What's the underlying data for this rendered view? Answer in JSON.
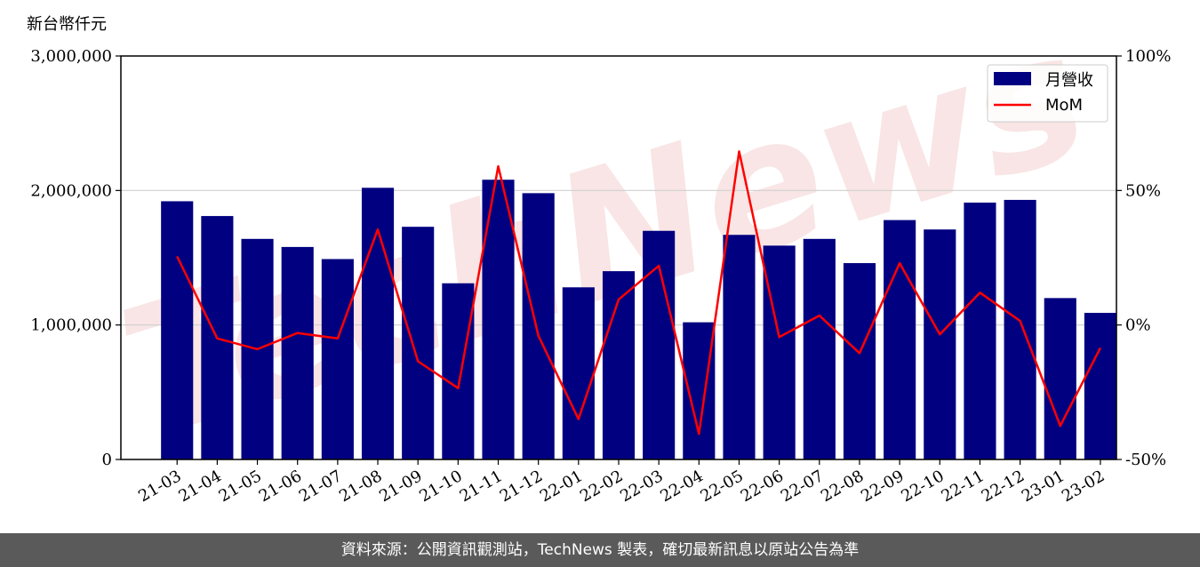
{
  "chart_data": {
    "type": "bar",
    "y_unit_label": "新台幣仟元",
    "categories": [
      "21-03",
      "21-04",
      "21-05",
      "21-06",
      "21-07",
      "21-08",
      "21-09",
      "21-10",
      "21-11",
      "21-12",
      "22-01",
      "22-02",
      "22-03",
      "22-04",
      "22-05",
      "22-06",
      "22-07",
      "22-08",
      "22-09",
      "22-10",
      "22-11",
      "22-12",
      "23-01",
      "23-02"
    ],
    "series": [
      {
        "name": "月營收",
        "axis": "left",
        "type": "bar",
        "color": "#000080",
        "values": [
          1920000,
          1810000,
          1640000,
          1580000,
          1490000,
          2020000,
          1730000,
          1310000,
          2080000,
          1980000,
          1280000,
          1400000,
          1700000,
          1020000,
          1670000,
          1590000,
          1640000,
          1460000,
          1780000,
          1710000,
          1910000,
          1930000,
          1200000,
          1090000
        ]
      },
      {
        "name": "MoM",
        "axis": "right",
        "type": "line",
        "color": "#ff0000",
        "values": [
          25.5,
          -5,
          -9,
          -3,
          -5,
          35.5,
          -13.5,
          -23.5,
          59,
          -4,
          -35,
          9.5,
          22,
          -40.5,
          64.5,
          -4.5,
          3.5,
          -10.5,
          23,
          -3.5,
          12,
          1.5,
          -37.5,
          -8.5
        ]
      }
    ],
    "y_left": {
      "min": 0,
      "max": 3000000,
      "ticks": [
        0,
        1000000,
        2000000,
        3000000
      ],
      "tick_labels": [
        "0",
        "1,000,000",
        "2,000,000",
        "3,000,000"
      ]
    },
    "y_right": {
      "min": -50,
      "max": 100,
      "ticks": [
        -50,
        0,
        50,
        100
      ],
      "tick_labels": [
        "-50%",
        "0%",
        "50%",
        "100%"
      ]
    },
    "grid": "horizontal",
    "legend_position": "top-right",
    "watermark": "TechNews",
    "footer": "資料來源：公開資訊觀測站，TechNews 製表，確切最新訊息以原站公告為準"
  }
}
